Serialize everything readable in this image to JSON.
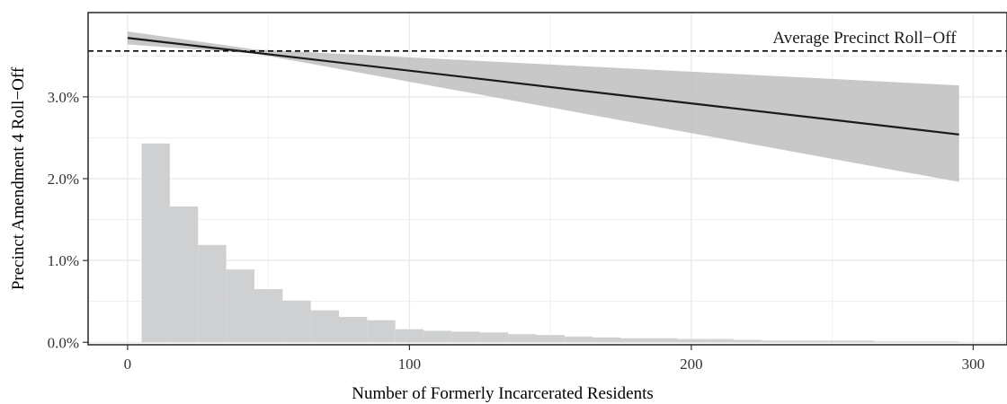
{
  "chart_data": {
    "type": "line",
    "xlabel": "Number of Formerly Incarcerated Residents",
    "ylabel": "Precinct Amendment 4 Roll−Off",
    "xlim": [
      -14,
      312
    ],
    "ylim": [
      -0.0003,
      0.0403
    ],
    "x_ticks": [
      0,
      100,
      200,
      300
    ],
    "x_tick_labels": [
      "0",
      "100",
      "200",
      "300"
    ],
    "y_ticks": [
      0.0,
      0.01,
      0.02,
      0.03
    ],
    "y_tick_labels": [
      "0.0%",
      "1.0%",
      "2.0%",
      "3.0%"
    ],
    "grid": true,
    "reference_line": {
      "y": 0.0356,
      "style": "dashed",
      "label": "Average Precinct Roll−Off"
    },
    "fit_line": {
      "x": [
        0,
        295
      ],
      "y": [
        0.0372,
        0.0254
      ]
    },
    "confidence_band": {
      "x": [
        0,
        45,
        295
      ],
      "lower": [
        0.0364,
        0.0353,
        0.0196
      ],
      "upper": [
        0.038,
        0.0358,
        0.0314
      ]
    },
    "histogram": {
      "bin_width": 10,
      "bin_starts": [
        5,
        15,
        25,
        35,
        45,
        55,
        65,
        75,
        85,
        95,
        105,
        115,
        125,
        135,
        145,
        155,
        165,
        175,
        185,
        195,
        205,
        215,
        225,
        235,
        245,
        255,
        265,
        275,
        285
      ],
      "heights": [
        0.0243,
        0.0166,
        0.0119,
        0.0089,
        0.0065,
        0.0051,
        0.0039,
        0.0031,
        0.0027,
        0.0016,
        0.0014,
        0.0013,
        0.0012,
        0.001,
        0.0009,
        0.0007,
        0.0006,
        0.0005,
        0.0005,
        0.0004,
        0.0004,
        0.0003,
        0.0002,
        0.0002,
        0.0002,
        0.0002,
        0.0001,
        0.0001,
        0.0001
      ]
    },
    "colors": {
      "band": "#bebebe",
      "histogram": "#cfd0d2",
      "line": "#1a1a1a",
      "grid": "#ebebeb",
      "panel_border": "#333333"
    }
  }
}
